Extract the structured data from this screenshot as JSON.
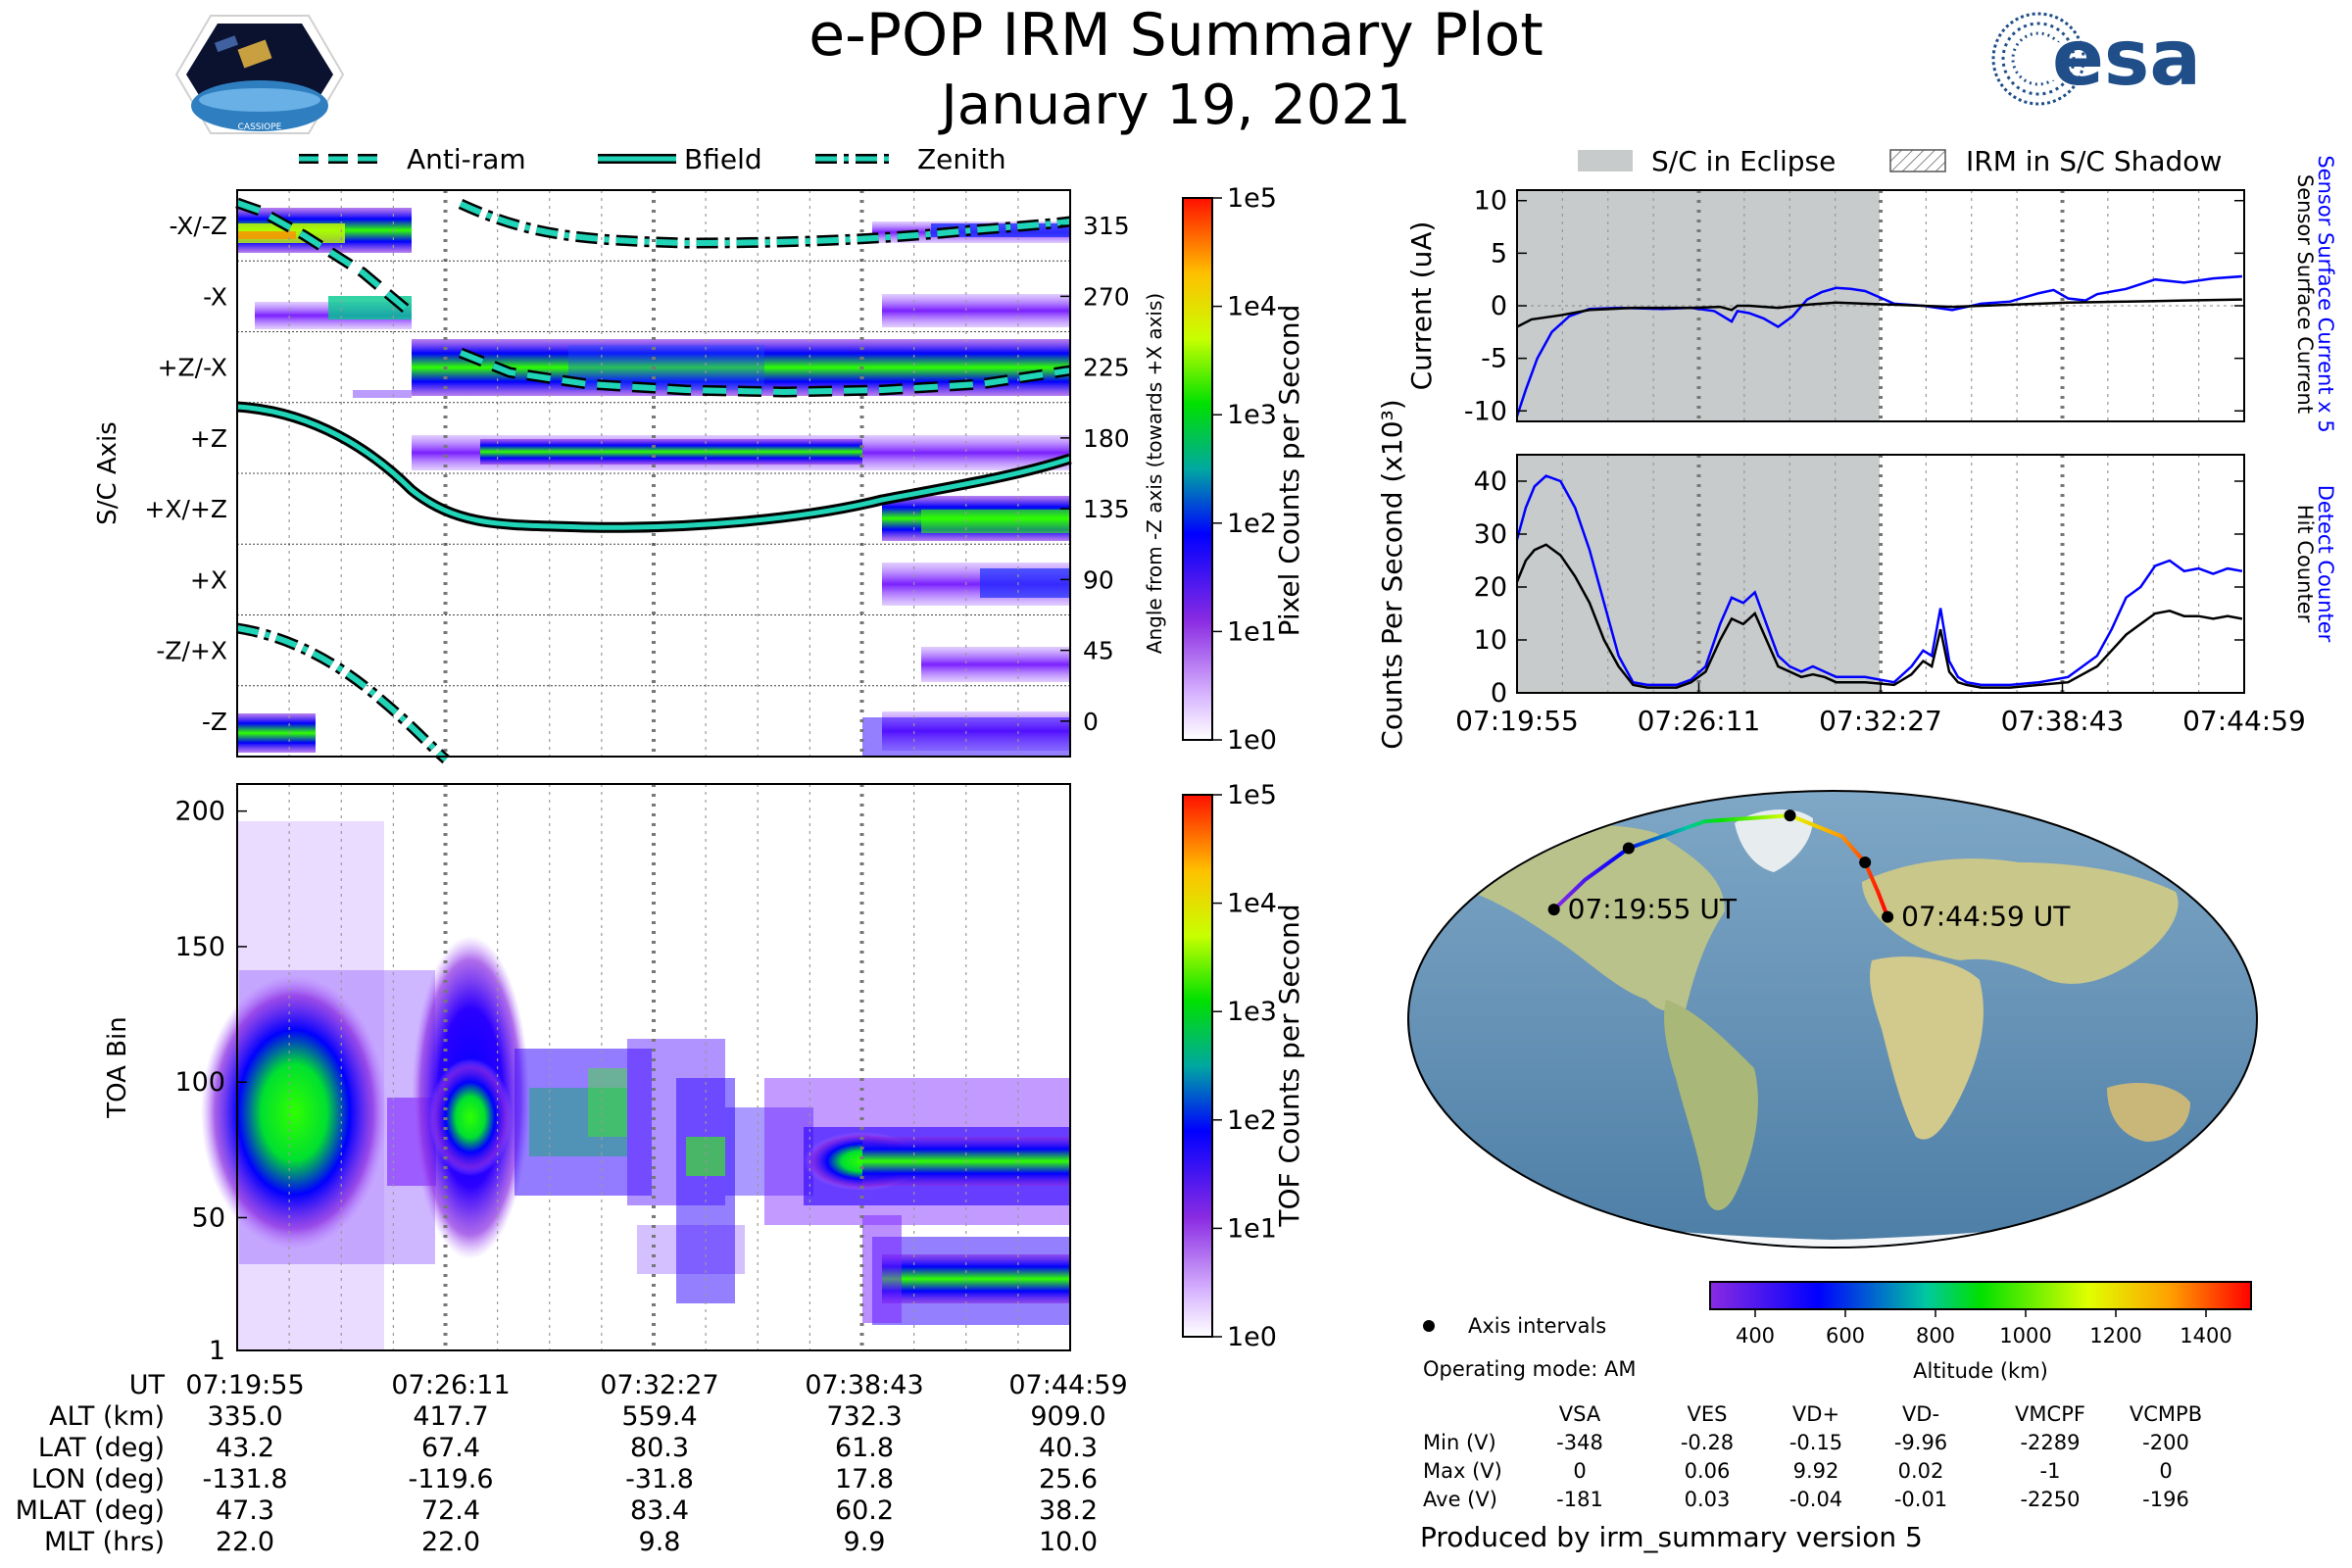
{
  "title": "e-POP IRM Summary Plot",
  "date": "January 19, 2021",
  "logos": {
    "left": "CASSIOPE",
    "right": "esa"
  },
  "footer": "Produced by irm_summary version 5",
  "colors": {
    "current_blue": "#0000ff",
    "teal": "#20d4b8",
    "eclipse": "#c8cbcb",
    "ocean": "#6a93b4",
    "land": "#c9c78a",
    "ice": "#f4f6f8"
  },
  "chart_data": [
    {
      "type": "heatmap",
      "name": "sc-axis",
      "ylabel": "S/C Axis",
      "y2label": "Angle from -Z axis (towards +X axis)",
      "axis_labels": [
        "-X/-Z",
        "-X",
        "+Z/-X",
        "+Z",
        "+X/+Z",
        "+X",
        "-Z/+X",
        "-Z"
      ],
      "angle_ticks": [
        315,
        270,
        225,
        180,
        135,
        90,
        45,
        0
      ],
      "legend": [
        "Anti-ram",
        "Bfield",
        "Zenith"
      ],
      "colorbar": {
        "label": "Pixel Counts per Second",
        "ticks": [
          "1e5",
          "1e4",
          "1e3",
          "1e2",
          "1e1",
          "1e0"
        ]
      }
    },
    {
      "type": "heatmap",
      "name": "toa",
      "ylabel": "TOA Bin",
      "yticks": [
        200,
        150,
        100,
        50,
        1
      ],
      "ylim": [
        1,
        210
      ],
      "colorbar": {
        "label": "TOF Counts per Second",
        "ticks": [
          "1e5",
          "1e4",
          "1e3",
          "1e2",
          "1e1",
          "1e0"
        ]
      }
    },
    {
      "type": "line",
      "name": "current",
      "ylabel": "Current (uA)",
      "y2label_blue": "Sensor Surface Current x 5",
      "y2label_black": "Sensor Surface Current",
      "yticks": [
        10,
        5,
        0,
        -5,
        -10
      ],
      "ylim": [
        -11,
        11
      ],
      "xlim_min": [
        0,
        25.07
      ],
      "eclipse_min": [
        0,
        12.5
      ],
      "legend": [
        "S/C in Eclipse",
        "IRM in S/C Shadow"
      ],
      "series": [
        {
          "name": "Sensor Surface Current x 5",
          "color": "blue",
          "x": [
            0,
            0.3,
            0.7,
            1.2,
            1.8,
            2.5,
            3.5,
            5,
            6,
            6.8,
            7.1,
            7.4,
            7.6,
            8,
            8.5,
            9,
            9.5,
            10,
            10.5,
            11,
            11.5,
            12,
            12.5,
            13,
            14,
            15,
            16,
            17,
            18,
            18.5,
            19,
            19.6,
            20,
            21,
            22,
            23,
            24,
            25
          ],
          "y": [
            -10.5,
            -8,
            -5,
            -2.5,
            -1,
            -0.3,
            -0.2,
            -0.3,
            -0.2,
            -0.5,
            -1,
            -1.5,
            -0.5,
            -0.7,
            -1.2,
            -2,
            -1,
            0.6,
            1.3,
            1.7,
            1.6,
            1.4,
            0.8,
            0.2,
            0,
            -0.4,
            0.2,
            0.4,
            1.2,
            1.5,
            0.7,
            0.5,
            1.1,
            1.6,
            2.5,
            2.2,
            2.6,
            2.8
          ]
        },
        {
          "name": "Sensor Surface Current",
          "color": "black",
          "x": [
            0,
            0.5,
            1.5,
            2.5,
            4,
            6,
            7,
            7.4,
            7.6,
            8,
            9,
            10,
            11,
            12,
            13,
            14,
            15,
            16,
            17,
            18,
            19,
            20,
            21,
            22,
            23,
            24,
            25
          ],
          "y": [
            -2,
            -1.3,
            -0.9,
            -0.4,
            -0.2,
            -0.2,
            -0.1,
            -0.4,
            0,
            0,
            -0.2,
            0.1,
            0.3,
            0.2,
            0.1,
            0,
            -0.1,
            0,
            0.1,
            0.2,
            0.3,
            0.35,
            0.4,
            0.45,
            0.5,
            0.55,
            0.6
          ]
        }
      ]
    },
    {
      "type": "line",
      "name": "counts",
      "ylabel": "Counts Per Second (x10³)",
      "y2label_blue": "Detect Counter",
      "y2label_black": "Hit Counter",
      "yticks": [
        40,
        30,
        20,
        10,
        0
      ],
      "ylim": [
        0,
        45
      ],
      "xlim_min": [
        0,
        25.07
      ],
      "xtick_labels": [
        "07:19:55",
        "07:26:11",
        "07:32:27",
        "07:38:43",
        "07:44:59"
      ],
      "series": [
        {
          "name": "Detect Counter",
          "color": "blue",
          "x": [
            0,
            0.3,
            0.6,
            1,
            1.5,
            2,
            2.5,
            3,
            3.5,
            4,
            4.5,
            5,
            5.5,
            6,
            6.5,
            7,
            7.4,
            7.8,
            8.2,
            8.6,
            9,
            9.4,
            9.8,
            10.2,
            10.6,
            11,
            12,
            13,
            13.6,
            14,
            14.3,
            14.6,
            14.9,
            15.2,
            15.5,
            16,
            17,
            18,
            19,
            20,
            20.5,
            21,
            21.5,
            22,
            22.5,
            23,
            23.5,
            24,
            24.5,
            25
          ],
          "y": [
            29,
            35,
            39,
            41,
            40,
            35,
            27,
            17,
            7,
            2,
            1.5,
            1.5,
            1.5,
            2.5,
            5,
            13,
            18,
            17,
            19,
            13,
            7,
            5,
            4,
            5,
            4,
            3,
            3,
            2,
            5,
            8,
            7,
            16,
            6,
            3,
            2,
            1.5,
            1.5,
            2,
            3,
            7,
            12,
            18,
            20,
            24,
            25,
            23,
            23.5,
            22.5,
            23.5,
            23
          ]
        },
        {
          "name": "Hit Counter",
          "color": "black",
          "x": [
            0,
            0.3,
            0.6,
            1,
            1.5,
            2,
            2.5,
            3,
            3.5,
            4,
            4.5,
            5,
            5.5,
            6,
            6.5,
            7,
            7.4,
            7.8,
            8.2,
            8.6,
            9,
            9.4,
            9.8,
            10.2,
            10.6,
            11,
            12,
            13,
            13.6,
            14,
            14.3,
            14.6,
            14.9,
            15.2,
            15.5,
            16,
            17,
            18,
            19,
            20,
            20.5,
            21,
            21.5,
            22,
            22.5,
            23,
            23.5,
            24,
            24.5,
            25
          ],
          "y": [
            21,
            25,
            27,
            28,
            26,
            22,
            17,
            10,
            5,
            1.5,
            1,
            1,
            1,
            2,
            4,
            10,
            14,
            13,
            15,
            10,
            5,
            4,
            3,
            3.5,
            3,
            2,
            2,
            1.5,
            3.5,
            6,
            5,
            12,
            4,
            2,
            1.5,
            1,
            1,
            1.5,
            2,
            5,
            8,
            11,
            13,
            15,
            15.5,
            14.5,
            14.5,
            14,
            14.5,
            14
          ]
        }
      ]
    }
  ],
  "time_labels": [
    "07:19:55",
    "07:26:11",
    "07:32:27",
    "07:38:43",
    "07:44:59"
  ],
  "ephemeris": [
    {
      "label": "UT",
      "values": [
        "07:19:55",
        "07:26:11",
        "07:32:27",
        "07:38:43",
        "07:44:59"
      ]
    },
    {
      "label": "ALT (km)",
      "values": [
        "335.0",
        "417.7",
        "559.4",
        "732.3",
        "909.0"
      ]
    },
    {
      "label": "LAT (deg)",
      "values": [
        "43.2",
        "67.4",
        "80.3",
        "61.8",
        "40.3"
      ]
    },
    {
      "label": "LON (deg)",
      "values": [
        "-131.8",
        "-119.6",
        "-31.8",
        "17.8",
        "25.6"
      ]
    },
    {
      "label": "MLAT (deg)",
      "values": [
        "47.3",
        "72.4",
        "83.4",
        "60.2",
        "38.2"
      ]
    },
    {
      "label": "MLT (hrs)",
      "values": [
        "22.0",
        "22.0",
        "9.8",
        "9.9",
        "10.0"
      ]
    }
  ],
  "map": {
    "start_label": "07:19:55 UT",
    "end_label": "07:44:59 UT",
    "legend_axis": "Axis intervals",
    "track": [
      {
        "lat": 43.2,
        "lon": -131.8
      },
      {
        "lat": 55,
        "lon": -127
      },
      {
        "lat": 67.4,
        "lon": -119.6
      },
      {
        "lat": 78,
        "lon": -90
      },
      {
        "lat": 80.3,
        "lon": -31.8
      },
      {
        "lat": 72,
        "lon": 6
      },
      {
        "lat": 61.8,
        "lon": 17.8
      },
      {
        "lat": 50,
        "lon": 22.5
      },
      {
        "lat": 40.3,
        "lon": 25.6
      }
    ],
    "axis_points": [
      {
        "lat": 43.2,
        "lon": -131.8
      },
      {
        "lat": 67.4,
        "lon": -119.6
      },
      {
        "lat": 80.3,
        "lon": -31.8
      },
      {
        "lat": 61.8,
        "lon": 17.8
      },
      {
        "lat": 40.3,
        "lon": 25.6
      }
    ],
    "altitude_colorbar": {
      "label": "Altitude (km)",
      "ticks": [
        "400",
        "600",
        "800",
        "1000",
        "1200",
        "1400"
      ],
      "range": [
        300,
        1500
      ]
    }
  },
  "operating_mode": "Operating mode: AM",
  "voltage_table": {
    "columns": [
      "VSA",
      "VES",
      "VD+",
      "VD-",
      "VMCPF",
      "VCMPB"
    ],
    "rows": [
      {
        "label": "Min (V)",
        "values": [
          "-348",
          "-0.28",
          "-0.15",
          "-9.96",
          "-2289",
          "-200"
        ]
      },
      {
        "label": "Max (V)",
        "values": [
          "0",
          "0.06",
          "9.92",
          "0.02",
          "-1",
          "0"
        ]
      },
      {
        "label": "Ave (V)",
        "values": [
          "-181",
          "0.03",
          "-0.04",
          "-0.01",
          "-2250",
          "-196"
        ]
      }
    ]
  }
}
